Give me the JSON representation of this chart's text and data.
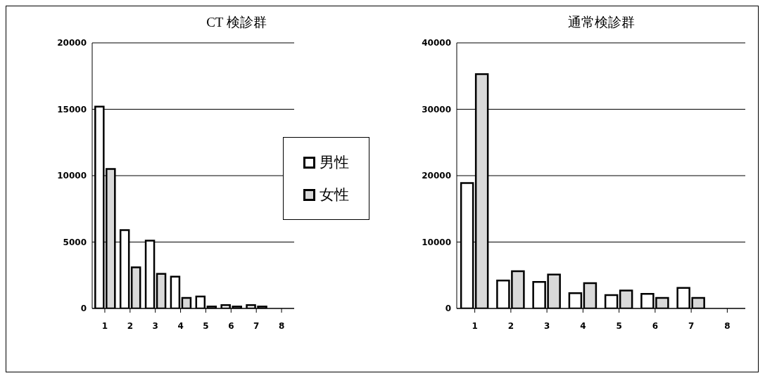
{
  "chart_data": [
    {
      "type": "bar",
      "title": "CT 検診群",
      "categories": [
        "1",
        "2",
        "3",
        "4",
        "5",
        "6",
        "7",
        "8"
      ],
      "series": [
        {
          "name": "男性",
          "color": "#ffffff",
          "values": [
            15200,
            5900,
            5100,
            2400,
            900,
            250,
            250,
            null
          ]
        },
        {
          "name": "女性",
          "color": "#d9d9d9",
          "values": [
            10500,
            3100,
            2600,
            800,
            150,
            150,
            150,
            null
          ]
        }
      ],
      "ylim": [
        0,
        20000
      ],
      "yticks": [
        0,
        5000,
        10000,
        15000,
        20000
      ],
      "grid": "y",
      "legend": "right"
    },
    {
      "type": "bar",
      "title": "通常検診群",
      "categories": [
        "1",
        "2",
        "3",
        "4",
        "5",
        "6",
        "7",
        "8"
      ],
      "series": [
        {
          "color": "#ffffff",
          "values": [
            18900,
            4200,
            4000,
            2300,
            2000,
            2200,
            3100,
            null
          ]
        },
        {
          "color": "#d9d9d9",
          "values": [
            35300,
            5600,
            5100,
            3800,
            2700,
            1600,
            1600,
            null
          ]
        }
      ],
      "ylim": [
        0,
        40000
      ],
      "yticks": [
        0,
        10000,
        20000,
        30000,
        40000
      ],
      "grid": "y"
    }
  ]
}
